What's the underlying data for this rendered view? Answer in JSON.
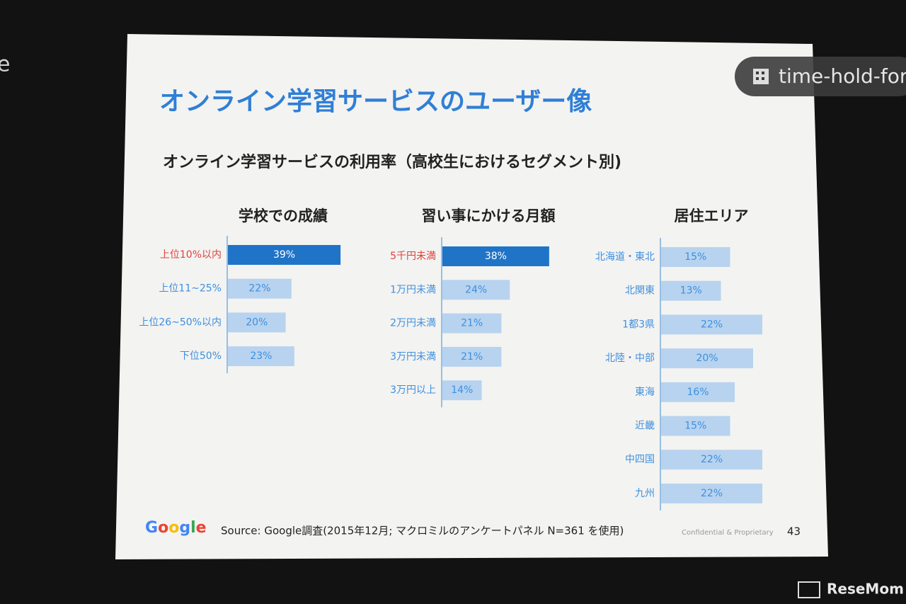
{
  "slide": {
    "title": "オンライン学習サービスのユーザー像",
    "subtitle": "オンライン学習サービスの利用率（高校生におけるセグメント別)",
    "logo": "Google",
    "source": "Source: Google調査(2015年12月; マクロミルのアンケートパネル N=361 を使用)",
    "confidential": "Confidential & Proprietary",
    "page_number": "43",
    "chip_text": "time-hold-for",
    "edge_text": "e",
    "watermark": "ResеMom"
  },
  "chart_data": [
    {
      "type": "bar",
      "orientation": "horizontal",
      "title": "学校での成績",
      "categories": [
        "上位10%以内",
        "上位11~25%",
        "上位26~50%以内",
        "下位50%"
      ],
      "values": [
        39,
        22,
        20,
        23
      ],
      "value_labels": [
        "39%",
        "22%",
        "20%",
        "23%"
      ],
      "colors": [
        "#1f74c8",
        "#b8d3ef",
        "#b8d3ef",
        "#b8d3ef"
      ],
      "label_colors": [
        "#ffffff",
        "#3d8fe0",
        "#3d8fe0",
        "#3d8fe0"
      ],
      "category_colors": [
        "#e0403a",
        "#3d8fe0",
        "#3d8fe0",
        "#3d8fe0"
      ]
    },
    {
      "type": "bar",
      "orientation": "horizontal",
      "title": "習い事にかける月額",
      "categories": [
        "5千円未満",
        "1万円未満",
        "2万円未満",
        "3万円未満",
        "3万円以上"
      ],
      "values": [
        38,
        24,
        21,
        21,
        14
      ],
      "value_labels": [
        "38%",
        "24%",
        "21%",
        "21%",
        "14%"
      ],
      "colors": [
        "#1f74c8",
        "#b8d3ef",
        "#b8d3ef",
        "#b8d3ef",
        "#b8d3ef"
      ],
      "label_colors": [
        "#ffffff",
        "#3d8fe0",
        "#3d8fe0",
        "#3d8fe0",
        "#3d8fe0"
      ],
      "category_colors": [
        "#e0403a",
        "#3d8fe0",
        "#3d8fe0",
        "#3d8fe0",
        "#3d8fe0"
      ]
    },
    {
      "type": "bar",
      "orientation": "horizontal",
      "title": "居住エリア",
      "categories": [
        "北海道・東北",
        "北関東",
        "1都3県",
        "北陸・中部",
        "東海",
        "近畿",
        "中四国",
        "九州"
      ],
      "values": [
        15,
        13,
        22,
        20,
        16,
        15,
        22,
        22
      ],
      "value_labels": [
        "15%",
        "13%",
        "22%",
        "20%",
        "16%",
        "15%",
        "22%",
        "22%"
      ],
      "colors": [
        "#b8d3ef",
        "#b8d3ef",
        "#b8d3ef",
        "#b8d3ef",
        "#b8d3ef",
        "#b8d3ef",
        "#b8d3ef",
        "#b8d3ef"
      ],
      "label_colors": [
        "#3d8fe0",
        "#3d8fe0",
        "#3d8fe0",
        "#3d8fe0",
        "#3d8fe0",
        "#3d8fe0",
        "#3d8fe0",
        "#3d8fe0"
      ],
      "category_colors": [
        "#3d8fe0",
        "#3d8fe0",
        "#3d8fe0",
        "#3d8fe0",
        "#3d8fe0",
        "#3d8fe0",
        "#3d8fe0",
        "#3d8fe0"
      ]
    }
  ]
}
